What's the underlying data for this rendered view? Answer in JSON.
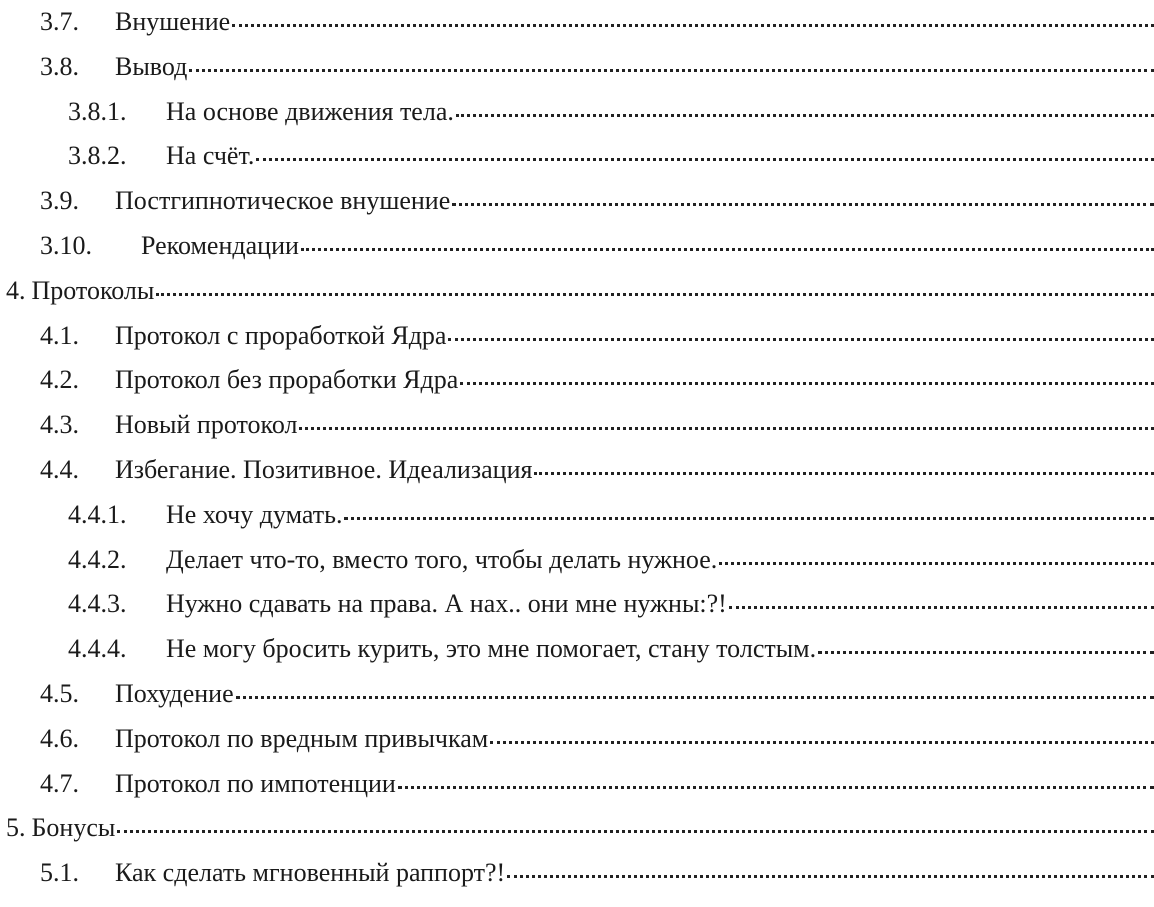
{
  "toc": [
    {
      "num": "3.7.",
      "title": "Внушение",
      "level": 2
    },
    {
      "num": "3.8.",
      "title": "Вывод",
      "level": 2
    },
    {
      "num": "3.8.1.",
      "title": "На основе движения тела.",
      "level": 3
    },
    {
      "num": "3.8.2.",
      "title": "На счёт.",
      "level": 3
    },
    {
      "num": "3.9.",
      "title": "Постгипнотическое внушение",
      "level": 2
    },
    {
      "num": "3.10.",
      "title": "Рекомендации",
      "level": 2,
      "wide": true
    },
    {
      "num": "4.",
      "title": "Протоколы",
      "level": 1
    },
    {
      "num": "4.1.",
      "title": "Протокол с проработкой Ядра",
      "level": 2
    },
    {
      "num": "4.2.",
      "title": "Протокол без проработки Ядра",
      "level": 2
    },
    {
      "num": "4.3.",
      "title": "Новый протокол",
      "level": 2
    },
    {
      "num": "4.4.",
      "title": "Избегание. Позитивное. Идеализация",
      "level": 2
    },
    {
      "num": "4.4.1.",
      "title": "Не хочу думать.",
      "level": 3
    },
    {
      "num": "4.4.2.",
      "title": "Делает что-то, вместо того, чтобы делать нужное.",
      "level": 3
    },
    {
      "num": "4.4.3.",
      "title": "Нужно сдавать на права. А нах.. они мне нужны:?!",
      "level": 3
    },
    {
      "num": "4.4.4.",
      "title": "Не могу бросить курить, это мне помогает, стану толстым.",
      "level": 3
    },
    {
      "num": "4.5.",
      "title": "Похудение",
      "level": 2
    },
    {
      "num": "4.6.",
      "title": "Протокол по вредным привычкам",
      "level": 2
    },
    {
      "num": "4.7.",
      "title": "Протокол по импотенции",
      "level": 2
    },
    {
      "num": "5.",
      "title": "Бонусы",
      "level": 1
    },
    {
      "num": "5.1.",
      "title": "Как сделать мгновенный раппорт?!",
      "level": 2
    }
  ]
}
